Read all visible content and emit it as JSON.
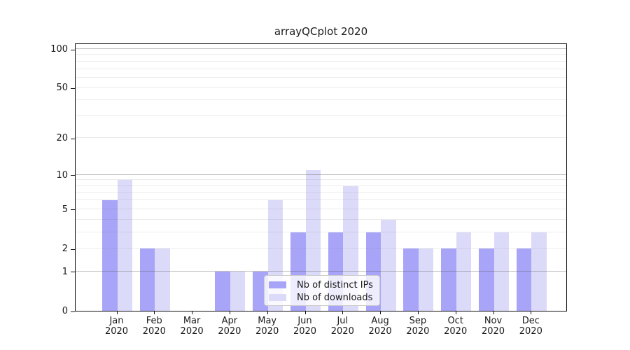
{
  "chart_data": {
    "type": "bar",
    "title": "arrayQCplot 2020",
    "scale": "log10(value+1)",
    "grid": true,
    "legend_position": "bottom-center",
    "categories": [
      {
        "month": "Jan",
        "year": "2020"
      },
      {
        "month": "Feb",
        "year": "2020"
      },
      {
        "month": "Mar",
        "year": "2020"
      },
      {
        "month": "Apr",
        "year": "2020"
      },
      {
        "month": "May",
        "year": "2020"
      },
      {
        "month": "Jun",
        "year": "2020"
      },
      {
        "month": "Jul",
        "year": "2020"
      },
      {
        "month": "Aug",
        "year": "2020"
      },
      {
        "month": "Sep",
        "year": "2020"
      },
      {
        "month": "Oct",
        "year": "2020"
      },
      {
        "month": "Nov",
        "year": "2020"
      },
      {
        "month": "Dec",
        "year": "2020"
      }
    ],
    "series": [
      {
        "name": "Nb of distinct IPs",
        "color": "#a8a4f7",
        "values": [
          6,
          2,
          0,
          1,
          1,
          3,
          3,
          3,
          2,
          2,
          2,
          2
        ]
      },
      {
        "name": "Nb of downloads",
        "color": "#dcdaf9",
        "values": [
          9,
          2,
          0,
          1,
          6,
          11,
          8,
          4,
          2,
          3,
          3,
          3
        ]
      }
    ],
    "yticks": [
      0,
      1,
      2,
      5,
      10,
      20,
      50,
      100
    ],
    "ytick_labels": [
      "0",
      "1",
      "2",
      "5",
      "10",
      "20",
      "50",
      "100"
    ],
    "major_gridlines": [
      1,
      10,
      100
    ],
    "minor_gridlines": [
      2,
      3,
      4,
      5,
      6,
      7,
      8,
      9,
      20,
      30,
      40,
      50,
      60,
      70,
      80,
      90
    ],
    "ylim": [
      0,
      112
    ]
  }
}
